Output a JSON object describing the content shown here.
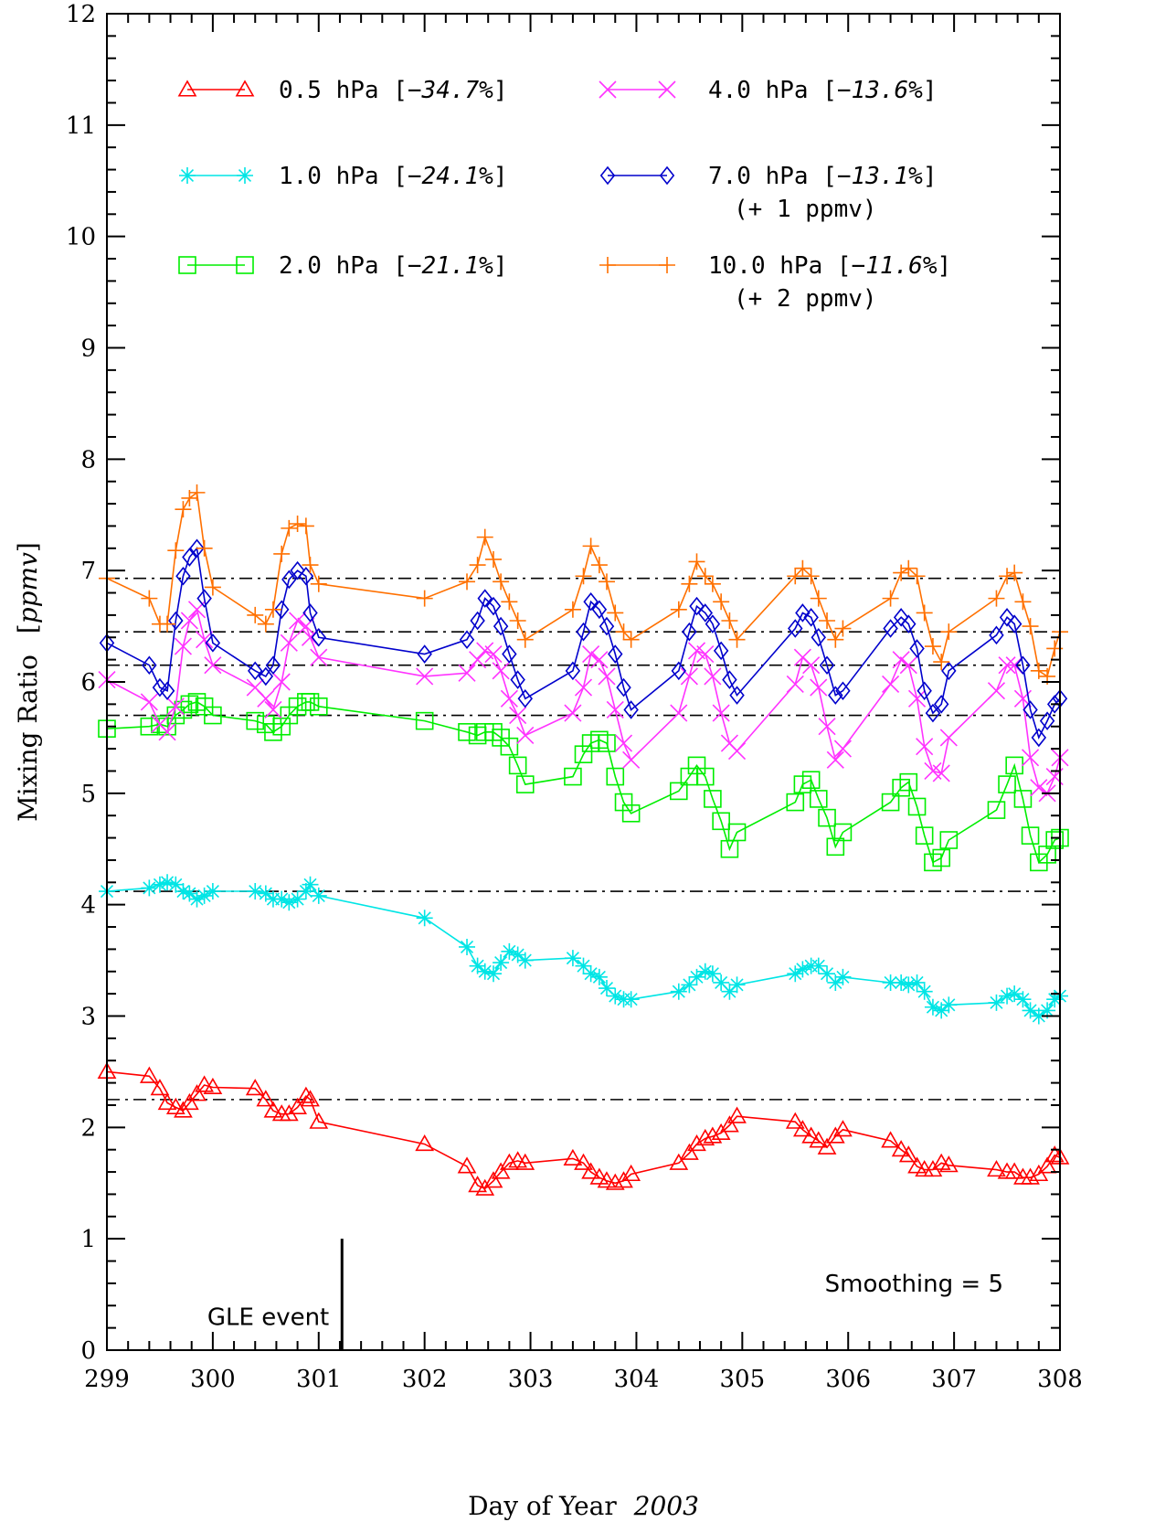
{
  "chart_data": {
    "type": "line",
    "xlabel": "Day of Year",
    "xlabel_year": "2003",
    "ylabel": "Mixing Ratio",
    "ylabel_unit": "ppmv",
    "xlim": [
      299,
      308
    ],
    "ylim": [
      0,
      12
    ],
    "x_ticks": [
      "299",
      "300",
      "301",
      "302",
      "303",
      "304",
      "305",
      "306",
      "307",
      "308"
    ],
    "y_ticks": [
      "0",
      "1",
      "2",
      "3",
      "4",
      "5",
      "6",
      "7",
      "8",
      "9",
      "10",
      "11",
      "12"
    ],
    "grid": false,
    "legend_position": "top",
    "reference_lines": [
      2.25,
      4.12,
      5.7,
      6.15,
      6.45,
      6.93
    ],
    "annotations": {
      "gle_label": "GLE event",
      "gle_x": 301.22,
      "gle_y_top": 1.0,
      "smoothing": "Smoothing = 5"
    },
    "series": [
      {
        "name": "0.5 hPa",
        "change": "−34.7%",
        "offset_note": "",
        "color": "#ff0000",
        "marker": "triangle",
        "x": [
          299.0,
          299.4,
          299.5,
          299.57,
          299.65,
          299.72,
          299.78,
          299.85,
          299.92,
          300.0,
          300.4,
          300.5,
          300.57,
          300.65,
          300.72,
          300.8,
          300.88,
          300.92,
          301.0,
          302.0,
          302.4,
          302.5,
          302.57,
          302.65,
          302.72,
          302.8,
          302.88,
          302.95,
          303.4,
          303.5,
          303.57,
          303.65,
          303.72,
          303.8,
          303.88,
          303.95,
          304.4,
          304.5,
          304.57,
          304.65,
          304.72,
          304.8,
          304.88,
          304.95,
          305.5,
          305.57,
          305.65,
          305.72,
          305.8,
          305.88,
          305.95,
          306.4,
          306.5,
          306.57,
          306.65,
          306.72,
          306.8,
          306.88,
          306.95,
          307.4,
          307.5,
          307.57,
          307.65,
          307.72,
          307.8,
          307.88,
          307.95,
          308.0
        ],
        "y": [
          2.5,
          2.46,
          2.35,
          2.22,
          2.18,
          2.15,
          2.22,
          2.3,
          2.38,
          2.36,
          2.35,
          2.25,
          2.15,
          2.12,
          2.12,
          2.18,
          2.28,
          2.25,
          2.05,
          1.85,
          1.65,
          1.48,
          1.45,
          1.52,
          1.6,
          1.68,
          1.7,
          1.68,
          1.72,
          1.68,
          1.6,
          1.55,
          1.52,
          1.5,
          1.52,
          1.58,
          1.68,
          1.77,
          1.85,
          1.9,
          1.92,
          1.95,
          2.02,
          2.1,
          2.05,
          1.98,
          1.92,
          1.88,
          1.82,
          1.92,
          1.98,
          1.88,
          1.8,
          1.75,
          1.65,
          1.62,
          1.62,
          1.68,
          1.66,
          1.62,
          1.6,
          1.6,
          1.55,
          1.55,
          1.58,
          1.65,
          1.75,
          1.73
        ]
      },
      {
        "name": "1.0 hPa",
        "change": "−24.1%",
        "offset_note": "",
        "color": "#00e5e5",
        "marker": "asterisk",
        "x": [
          299.0,
          299.4,
          299.5,
          299.57,
          299.65,
          299.72,
          299.78,
          299.85,
          299.92,
          300.0,
          300.4,
          300.5,
          300.57,
          300.65,
          300.72,
          300.8,
          300.88,
          300.92,
          301.0,
          302.0,
          302.4,
          302.5,
          302.57,
          302.65,
          302.72,
          302.8,
          302.88,
          302.95,
          303.4,
          303.5,
          303.57,
          303.65,
          303.72,
          303.8,
          303.88,
          303.95,
          304.4,
          304.5,
          304.57,
          304.65,
          304.72,
          304.8,
          304.88,
          304.95,
          305.5,
          305.57,
          305.65,
          305.72,
          305.8,
          305.88,
          305.95,
          306.4,
          306.5,
          306.57,
          306.65,
          306.72,
          306.8,
          306.88,
          306.95,
          307.4,
          307.5,
          307.57,
          307.65,
          307.72,
          307.8,
          307.88,
          307.95,
          308.0
        ],
        "y": [
          4.12,
          4.15,
          4.18,
          4.2,
          4.18,
          4.12,
          4.1,
          4.05,
          4.08,
          4.12,
          4.12,
          4.1,
          4.05,
          4.05,
          4.02,
          4.05,
          4.12,
          4.18,
          4.08,
          3.88,
          3.62,
          3.45,
          3.4,
          3.38,
          3.48,
          3.58,
          3.55,
          3.5,
          3.52,
          3.45,
          3.38,
          3.35,
          3.25,
          3.18,
          3.15,
          3.15,
          3.22,
          3.28,
          3.35,
          3.4,
          3.38,
          3.3,
          3.22,
          3.28,
          3.38,
          3.42,
          3.45,
          3.45,
          3.38,
          3.3,
          3.35,
          3.3,
          3.3,
          3.28,
          3.3,
          3.22,
          3.08,
          3.05,
          3.1,
          3.12,
          3.18,
          3.2,
          3.15,
          3.05,
          3.0,
          3.05,
          3.15,
          3.18
        ]
      },
      {
        "name": "2.0 hPa",
        "change": "−21.1%",
        "offset_note": "",
        "color": "#00ee00",
        "marker": "square",
        "x": [
          299.0,
          299.4,
          299.5,
          299.57,
          299.65,
          299.72,
          299.78,
          299.85,
          299.92,
          300.0,
          300.4,
          300.5,
          300.57,
          300.65,
          300.72,
          300.8,
          300.88,
          300.92,
          301.0,
          302.0,
          302.4,
          302.5,
          302.57,
          302.65,
          302.72,
          302.8,
          302.88,
          302.95,
          303.4,
          303.5,
          303.57,
          303.65,
          303.72,
          303.8,
          303.88,
          303.95,
          304.4,
          304.5,
          304.57,
          304.65,
          304.72,
          304.8,
          304.88,
          304.95,
          305.5,
          305.57,
          305.65,
          305.72,
          305.8,
          305.88,
          305.95,
          306.4,
          306.5,
          306.57,
          306.65,
          306.72,
          306.8,
          306.88,
          306.95,
          307.4,
          307.5,
          307.57,
          307.65,
          307.72,
          307.8,
          307.88,
          307.95,
          308.0
        ],
        "y": [
          5.58,
          5.6,
          5.62,
          5.6,
          5.7,
          5.75,
          5.8,
          5.82,
          5.78,
          5.7,
          5.65,
          5.62,
          5.55,
          5.6,
          5.7,
          5.78,
          5.82,
          5.82,
          5.78,
          5.65,
          5.55,
          5.52,
          5.55,
          5.55,
          5.5,
          5.42,
          5.25,
          5.08,
          5.15,
          5.35,
          5.45,
          5.48,
          5.45,
          5.15,
          4.92,
          4.82,
          5.02,
          5.15,
          5.25,
          5.15,
          4.95,
          4.75,
          4.5,
          4.65,
          4.92,
          5.08,
          5.12,
          4.95,
          4.78,
          4.52,
          4.65,
          4.92,
          5.05,
          5.1,
          4.88,
          4.62,
          4.38,
          4.42,
          4.58,
          4.85,
          5.08,
          5.25,
          4.95,
          4.62,
          4.38,
          4.45,
          4.58,
          4.6
        ]
      },
      {
        "name": "4.0 hPa",
        "change": "−13.6%",
        "offset_note": "",
        "color": "#ff33ff",
        "marker": "cross",
        "x": [
          299.0,
          299.4,
          299.5,
          299.57,
          299.65,
          299.72,
          299.78,
          299.85,
          299.92,
          300.0,
          300.4,
          300.5,
          300.57,
          300.65,
          300.72,
          300.8,
          300.88,
          300.92,
          301.0,
          302.0,
          302.4,
          302.5,
          302.57,
          302.65,
          302.72,
          302.8,
          302.88,
          302.95,
          303.4,
          303.5,
          303.57,
          303.65,
          303.72,
          303.8,
          303.88,
          303.95,
          304.4,
          304.5,
          304.57,
          304.65,
          304.72,
          304.8,
          304.88,
          304.95,
          305.5,
          305.57,
          305.65,
          305.72,
          305.8,
          305.88,
          305.95,
          306.4,
          306.5,
          306.57,
          306.65,
          306.72,
          306.8,
          306.88,
          306.95,
          307.4,
          307.5,
          307.57,
          307.65,
          307.72,
          307.8,
          307.88,
          307.95,
          308.0
        ],
        "y": [
          6.02,
          5.82,
          5.62,
          5.55,
          5.78,
          6.32,
          6.55,
          6.65,
          6.38,
          6.15,
          5.95,
          5.85,
          5.75,
          6.0,
          6.35,
          6.55,
          6.5,
          6.4,
          6.22,
          6.05,
          6.08,
          6.2,
          6.28,
          6.25,
          6.1,
          5.85,
          5.7,
          5.52,
          5.72,
          5.95,
          6.25,
          6.2,
          6.05,
          5.75,
          5.45,
          5.3,
          5.72,
          6.05,
          6.28,
          6.25,
          6.05,
          5.72,
          5.45,
          5.38,
          5.98,
          6.22,
          6.15,
          5.95,
          5.6,
          5.3,
          5.4,
          5.98,
          6.2,
          6.15,
          5.85,
          5.42,
          5.2,
          5.18,
          5.5,
          5.92,
          6.15,
          6.15,
          5.85,
          5.32,
          5.05,
          5.0,
          5.15,
          5.32
        ]
      },
      {
        "name": "7.0 hPa",
        "change": "−13.1%",
        "offset_note": "(+ 1 ppmv)",
        "color": "#0000cc",
        "marker": "diamond",
        "x": [
          299.0,
          299.4,
          299.5,
          299.57,
          299.65,
          299.72,
          299.78,
          299.85,
          299.92,
          300.0,
          300.4,
          300.5,
          300.57,
          300.65,
          300.72,
          300.8,
          300.88,
          300.92,
          301.0,
          302.0,
          302.4,
          302.5,
          302.57,
          302.65,
          302.72,
          302.8,
          302.88,
          302.95,
          303.4,
          303.5,
          303.57,
          303.65,
          303.72,
          303.8,
          303.88,
          303.95,
          304.4,
          304.5,
          304.57,
          304.65,
          304.72,
          304.8,
          304.88,
          304.95,
          305.5,
          305.57,
          305.65,
          305.72,
          305.8,
          305.88,
          305.95,
          306.4,
          306.5,
          306.57,
          306.65,
          306.72,
          306.8,
          306.88,
          306.95,
          307.4,
          307.5,
          307.57,
          307.65,
          307.72,
          307.8,
          307.88,
          307.95,
          308.0
        ],
        "y": [
          6.35,
          6.15,
          5.95,
          5.92,
          6.55,
          6.95,
          7.12,
          7.2,
          6.75,
          6.35,
          6.1,
          6.05,
          6.15,
          6.65,
          6.92,
          7.0,
          6.95,
          6.62,
          6.4,
          6.25,
          6.38,
          6.55,
          6.75,
          6.68,
          6.5,
          6.25,
          6.02,
          5.85,
          6.1,
          6.45,
          6.72,
          6.65,
          6.5,
          6.25,
          5.95,
          5.75,
          6.1,
          6.45,
          6.68,
          6.62,
          6.52,
          6.28,
          6.02,
          5.88,
          6.48,
          6.62,
          6.58,
          6.4,
          6.15,
          5.88,
          5.92,
          6.48,
          6.58,
          6.52,
          6.3,
          5.92,
          5.72,
          5.8,
          6.1,
          6.42,
          6.58,
          6.52,
          6.15,
          5.75,
          5.5,
          5.65,
          5.8,
          5.85
        ]
      },
      {
        "name": "10.0 hPa",
        "change": "−11.6%",
        "offset_note": "(+ 2 ppmv)",
        "color": "#ff7000",
        "marker": "plus",
        "x": [
          299.0,
          299.4,
          299.5,
          299.57,
          299.65,
          299.72,
          299.78,
          299.85,
          299.92,
          300.0,
          300.4,
          300.5,
          300.57,
          300.65,
          300.72,
          300.8,
          300.88,
          300.92,
          301.0,
          302.0,
          302.4,
          302.5,
          302.57,
          302.65,
          302.72,
          302.8,
          302.88,
          302.95,
          303.4,
          303.5,
          303.57,
          303.65,
          303.72,
          303.8,
          303.88,
          303.95,
          304.4,
          304.5,
          304.57,
          304.65,
          304.72,
          304.8,
          304.88,
          304.95,
          305.5,
          305.57,
          305.65,
          305.72,
          305.8,
          305.88,
          305.95,
          306.4,
          306.5,
          306.57,
          306.65,
          306.72,
          306.8,
          306.88,
          306.95,
          307.4,
          307.5,
          307.57,
          307.65,
          307.72,
          307.8,
          307.88,
          307.95,
          308.0
        ],
        "y": [
          6.93,
          6.75,
          6.52,
          6.52,
          7.18,
          7.55,
          7.65,
          7.7,
          7.2,
          6.85,
          6.6,
          6.52,
          6.65,
          7.15,
          7.38,
          7.42,
          7.4,
          7.05,
          6.88,
          6.75,
          6.9,
          7.05,
          7.3,
          7.1,
          6.9,
          6.72,
          6.55,
          6.38,
          6.65,
          6.95,
          7.22,
          7.05,
          6.9,
          6.62,
          6.45,
          6.38,
          6.65,
          6.88,
          7.08,
          6.95,
          6.88,
          6.72,
          6.55,
          6.38,
          6.95,
          7.02,
          6.95,
          6.75,
          6.55,
          6.38,
          6.48,
          6.75,
          6.98,
          7.02,
          6.95,
          6.62,
          6.32,
          6.18,
          6.45,
          6.75,
          6.95,
          6.98,
          6.72,
          6.5,
          6.1,
          6.05,
          6.3,
          6.45
        ]
      }
    ]
  }
}
